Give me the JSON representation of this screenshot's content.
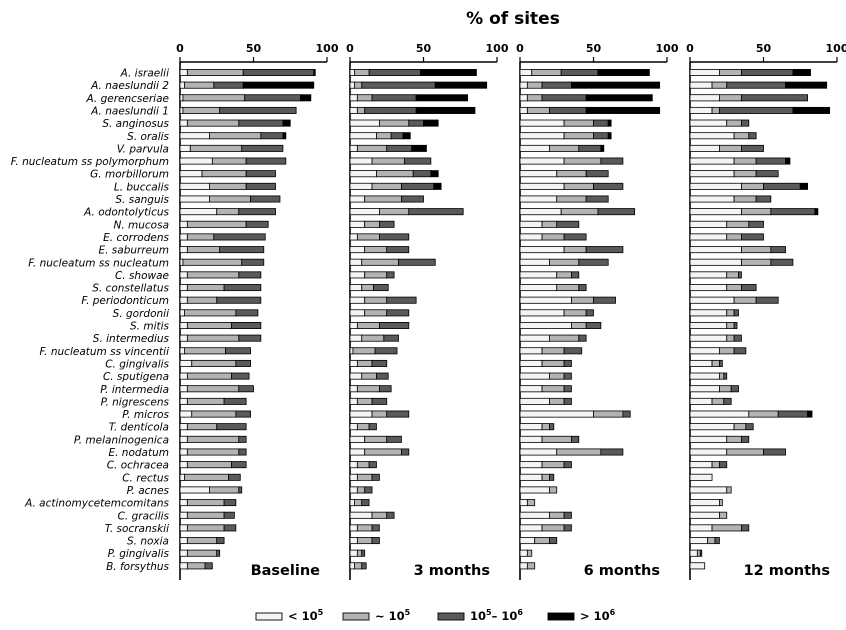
{
  "chart_data": {
    "type": "bar",
    "stacked": true,
    "orientation": "horizontal",
    "title": "% of sites",
    "xlim": [
      0,
      100
    ],
    "xticks": [
      0,
      50,
      100
    ],
    "colors": {
      "lt_1e5": "#f4f4f4",
      "approx_1e5": "#b3b3b3",
      "1e5_1e6": "#5a5a5a",
      "gt_1e6": "#000000"
    },
    "categories": [
      "A. israelii",
      "A. naeslundii 2",
      "A. gerencseriae",
      "A. naeslundii 1",
      "S. anginosus",
      "S. oralis",
      "V. parvula",
      "F. nucleatum ss polymorphum",
      "G. morbillorum",
      "L. buccalis",
      "S. sanguis",
      "A. odontolyticus",
      "N. mucosa",
      "E. corrodens",
      "E. saburreum",
      "F. nucleatum ss nucleatum",
      "C. showae",
      "S. constellatus",
      "F. periodonticum",
      "S. gordonii",
      "S. mitis",
      "S. intermedius",
      "F. nucleatum ss vincentii",
      "C. gingivalis",
      "C. sputigena",
      "P. intermedia",
      "P. nigrescens",
      "P. micros",
      "T. denticola",
      "P. melaninogenica",
      "E. nodatum",
      "C. ochracea",
      "C. rectus",
      "P. acnes",
      "A. actinomycetemcomitans",
      "C. gracilis",
      "T. socranskii",
      "S. noxia",
      "P. gingivalis",
      "B. forsythus"
    ],
    "legend": [
      {
        "key": "lt_1e5",
        "base": "< 10",
        "exp": "5"
      },
      {
        "key": "approx_1e5",
        "base": "~ 10",
        "exp": "5"
      },
      {
        "key": "1e5_1e6",
        "base": "10",
        "exp": "5",
        "mid": "– 10",
        "exp2": "6"
      },
      {
        "key": "gt_1e6",
        "base": "> 10",
        "exp": "6"
      }
    ],
    "panels": [
      {
        "label": "Baseline",
        "series": [
          {
            "values": [
              5,
              3,
              2,
              2,
              5,
              20,
              7,
              22,
              15,
              20,
              20,
              25,
              5,
              5,
              5,
              2,
              5,
              5,
              5,
              3,
              5,
              5,
              3,
              8,
              5,
              5,
              5,
              8,
              5,
              5,
              5,
              5,
              3,
              20,
              5,
              5,
              5,
              5,
              5,
              5
            ]
          },
          {
            "values": [
              38,
              20,
              42,
              25,
              35,
              35,
              35,
              23,
              30,
              25,
              28,
              15,
              40,
              18,
              22,
              40,
              35,
              25,
              20,
              35,
              30,
              35,
              28,
              30,
              30,
              35,
              25,
              30,
              20,
              35,
              35,
              30,
              30,
              20,
              25,
              25,
              25,
              20,
              20,
              12
            ]
          },
          {
            "values": [
              48,
              20,
              38,
              52,
              30,
              15,
              28,
              27,
              20,
              20,
              20,
              25,
              15,
              35,
              30,
              15,
              15,
              25,
              30,
              15,
              20,
              15,
              17,
              10,
              12,
              10,
              15,
              10,
              20,
              5,
              5,
              10,
              8,
              2,
              8,
              7,
              8,
              5,
              2,
              5
            ]
          },
          {
            "values": [
              1,
              48,
              7,
              0,
              5,
              2,
              0,
              0,
              0,
              0,
              0,
              0,
              0,
              0,
              0,
              0,
              0,
              0,
              0,
              0,
              0,
              0,
              0,
              0,
              0,
              0,
              0,
              0,
              0,
              0,
              0,
              0,
              0,
              0,
              0,
              0,
              0,
              0,
              0,
              0
            ]
          }
        ]
      },
      {
        "label": "3 months",
        "series": [
          {
            "values": [
              3,
              3,
              5,
              5,
              20,
              18,
              5,
              15,
              18,
              15,
              10,
              20,
              10,
              5,
              10,
              8,
              10,
              8,
              10,
              10,
              5,
              8,
              2,
              5,
              8,
              5,
              5,
              15,
              5,
              10,
              10,
              5,
              5,
              5,
              3,
              15,
              5,
              5,
              5,
              3
            ]
          },
          {
            "values": [
              10,
              5,
              10,
              5,
              20,
              10,
              20,
              22,
              25,
              20,
              25,
              20,
              10,
              15,
              15,
              25,
              15,
              8,
              15,
              15,
              15,
              15,
              15,
              10,
              10,
              15,
              10,
              10,
              8,
              15,
              25,
              8,
              10,
              5,
              5,
              10,
              10,
              10,
              3,
              5
            ]
          },
          {
            "values": [
              35,
              50,
              30,
              35,
              10,
              8,
              17,
              18,
              12,
              22,
              15,
              37,
              10,
              20,
              15,
              25,
              5,
              10,
              20,
              15,
              20,
              10,
              15,
              10,
              8,
              8,
              10,
              15,
              5,
              10,
              5,
              5,
              5,
              5,
              5,
              5,
              5,
              5,
              2,
              3
            ]
          },
          {
            "values": [
              38,
              35,
              35,
              40,
              10,
              5,
              10,
              0,
              5,
              5,
              0,
              0,
              0,
              0,
              0,
              0,
              0,
              0,
              0,
              0,
              0,
              0,
              0,
              0,
              0,
              0,
              0,
              0,
              0,
              0,
              0,
              0,
              0,
              0,
              0,
              0,
              0,
              0,
              0,
              0
            ]
          }
        ]
      },
      {
        "label": "6 months",
        "series": [
          {
            "values": [
              8,
              5,
              5,
              5,
              30,
              30,
              20,
              30,
              25,
              30,
              25,
              28,
              15,
              15,
              30,
              20,
              25,
              25,
              35,
              30,
              35,
              20,
              15,
              15,
              20,
              15,
              20,
              50,
              15,
              15,
              25,
              15,
              15,
              20,
              5,
              20,
              15,
              10,
              5,
              5
            ]
          },
          {
            "values": [
              20,
              10,
              10,
              15,
              20,
              20,
              20,
              25,
              20,
              20,
              20,
              25,
              10,
              15,
              15,
              20,
              10,
              15,
              15,
              15,
              10,
              20,
              15,
              15,
              10,
              15,
              10,
              20,
              5,
              20,
              30,
              15,
              5,
              5,
              5,
              10,
              15,
              10,
              3,
              5
            ]
          },
          {
            "values": [
              25,
              20,
              30,
              25,
              10,
              10,
              15,
              15,
              15,
              20,
              15,
              25,
              15,
              15,
              25,
              20,
              5,
              5,
              15,
              5,
              10,
              5,
              12,
              5,
              5,
              5,
              5,
              5,
              3,
              5,
              15,
              5,
              3,
              0,
              0,
              5,
              5,
              5,
              0,
              0
            ]
          },
          {
            "values": [
              35,
              60,
              45,
              50,
              2,
              2,
              2,
              0,
              0,
              0,
              0,
              0,
              0,
              0,
              0,
              0,
              0,
              0,
              0,
              0,
              0,
              0,
              0,
              0,
              0,
              0,
              0,
              0,
              0,
              0,
              0,
              0,
              0,
              0,
              0,
              0,
              0,
              0,
              0,
              0
            ]
          }
        ]
      },
      {
        "label": "12 months",
        "series": [
          {
            "values": [
              20,
              15,
              20,
              15,
              25,
              30,
              20,
              30,
              30,
              35,
              30,
              35,
              25,
              25,
              35,
              35,
              25,
              25,
              30,
              25,
              25,
              25,
              20,
              15,
              20,
              20,
              15,
              40,
              30,
              25,
              25,
              15,
              15,
              25,
              20,
              20,
              15,
              12,
              5,
              10
            ]
          },
          {
            "values": [
              15,
              10,
              15,
              5,
              10,
              10,
              15,
              15,
              15,
              15,
              15,
              20,
              15,
              10,
              20,
              20,
              8,
              10,
              15,
              5,
              5,
              5,
              10,
              5,
              3,
              8,
              8,
              20,
              8,
              10,
              25,
              5,
              0,
              3,
              2,
              5,
              20,
              5,
              2,
              0
            ]
          },
          {
            "values": [
              35,
              40,
              45,
              50,
              5,
              5,
              15,
              20,
              15,
              25,
              10,
              30,
              10,
              15,
              10,
              15,
              2,
              10,
              15,
              3,
              2,
              5,
              8,
              2,
              2,
              5,
              5,
              20,
              5,
              5,
              15,
              5,
              0,
              0,
              0,
              0,
              5,
              3,
              1,
              0
            ]
          },
          {
            "values": [
              12,
              28,
              0,
              25,
              0,
              0,
              0,
              3,
              0,
              5,
              0,
              2,
              0,
              0,
              0,
              0,
              0,
              0,
              0,
              0,
              0,
              0,
              0,
              0,
              0,
              0,
              0,
              3,
              0,
              0,
              0,
              0,
              0,
              0,
              0,
              0,
              0,
              0,
              0,
              0
            ]
          }
        ]
      }
    ]
  }
}
